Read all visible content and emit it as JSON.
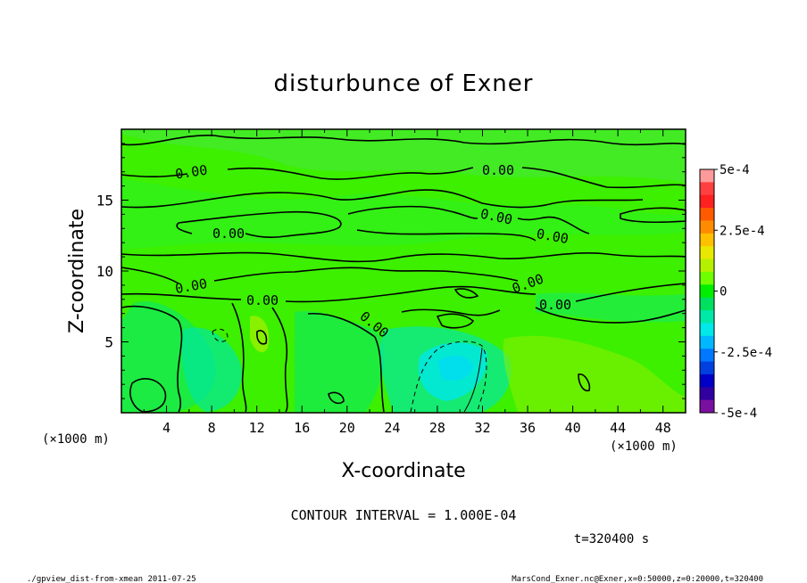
{
  "chart_data": {
    "type": "heatmap",
    "title": "disturbunce of Exner",
    "xlabel": "X-coordinate",
    "ylabel": "Z-coordinate",
    "x_unit": "(×1000 m)",
    "y_unit": "(×1000 m)",
    "xlim": [
      0,
      50
    ],
    "ylim": [
      0,
      20
    ],
    "x_ticks": [
      "4",
      "8",
      "12",
      "16",
      "20",
      "24",
      "28",
      "32",
      "36",
      "40",
      "44",
      "48"
    ],
    "y_ticks": [
      "5",
      "10",
      "15"
    ],
    "colorbar": {
      "labels": [
        "5e-4",
        "2.5e-4",
        "0",
        "-2.5e-4",
        "-5e-4"
      ],
      "range": [
        -0.0005,
        0.0005
      ],
      "colors": [
        "#ff9a9a",
        "#ff4040",
        "#ff2020",
        "#ff5a00",
        "#ff8c00",
        "#ffc000",
        "#e8e800",
        "#b4f000",
        "#70ff00",
        "#00ee00",
        "#00e060",
        "#00e8a8",
        "#00e8e8",
        "#00b8ff",
        "#0078ff",
        "#0040e0",
        "#0000c8",
        "#3000a0",
        "#7a10a0"
      ]
    },
    "contour_labels": [
      "0.00",
      "0.00",
      "0.00",
      "0.00",
      "0.00",
      "0.00",
      "0.00",
      "0.00",
      "0.00",
      "0.00"
    ],
    "contour_interval": "CONTOUR INTERVAL = 1.000E-04",
    "time": "t=320400 s"
  },
  "footer": {
    "left": "./gpview_dist-from-xmean  2011-07-25",
    "right": "MarsCond_Exner.nc@Exner,x=0:50000,z=0:20000,t=320400"
  }
}
